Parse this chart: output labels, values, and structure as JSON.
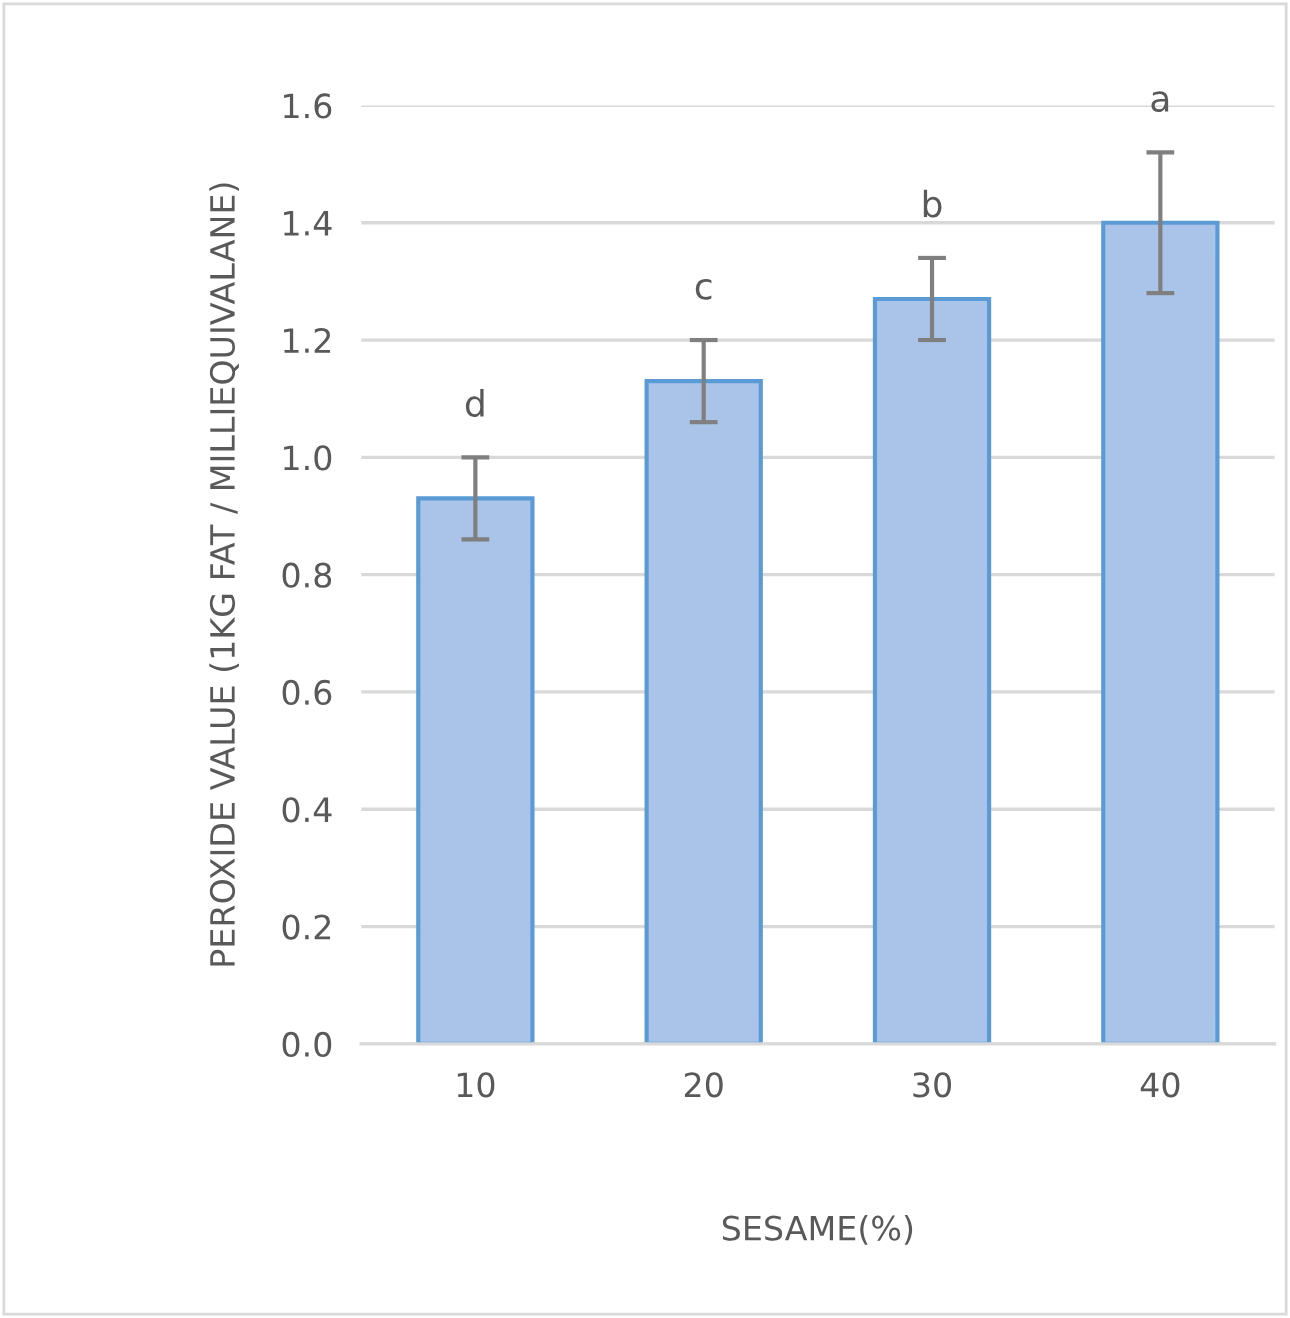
{
  "chart_data": {
    "type": "bar",
    "xlabel": "SESAME(%)",
    "ylabel": "PEROXIDE VALUE (1KG FAT / MILLIEQUIVALANE)",
    "categories": [
      "10",
      "20",
      "30",
      "40"
    ],
    "values": [
      0.93,
      1.13,
      1.27,
      1.4
    ],
    "errors": [
      0.07,
      0.07,
      0.07,
      0.12
    ],
    "color": "#a9c4e8",
    "ylim": [
      0,
      1.6
    ],
    "yticks": [
      {
        "value": 0,
        "label": "0.0"
      },
      {
        "value": 0.2,
        "label": "0.2"
      },
      {
        "value": 0.4,
        "label": "0.4"
      },
      {
        "value": 0.6,
        "label": "0.6"
      },
      {
        "value": 0.8,
        "label": "0.8"
      },
      {
        "value": 1.0,
        "label": "1.0"
      },
      {
        "value": 1.2,
        "label": "1.2"
      },
      {
        "value": 1.4,
        "label": "1.4"
      },
      {
        "value": 1.6,
        "label": "1.6"
      }
    ],
    "grid": "y",
    "annotations": [
      {
        "text": "d",
        "x": "10",
        "y": 1.0
      },
      {
        "text": "c",
        "x": "20",
        "y": 1.2
      },
      {
        "text": "b",
        "x": "30",
        "y": 1.34
      },
      {
        "text": "a",
        "x": "40",
        "y": 1.52
      }
    ]
  }
}
